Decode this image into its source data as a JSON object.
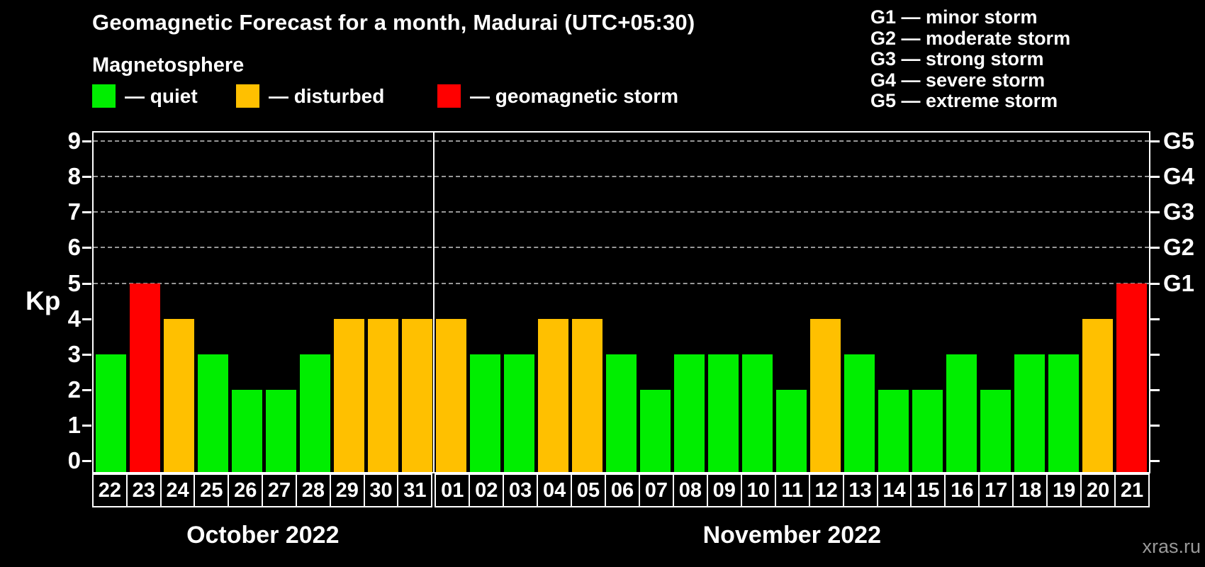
{
  "title": "Geomagnetic Forecast for a month, Madurai (UTC+05:30)",
  "subtitle": "Magnetosphere",
  "legend": {
    "items": [
      {
        "key": "quiet",
        "label": "— quiet",
        "color": "#00ee00"
      },
      {
        "key": "disturbed",
        "label": "— disturbed",
        "color": "#ffc000"
      },
      {
        "key": "storm",
        "label": "— geomagnetic storm",
        "color": "#ff0000"
      }
    ]
  },
  "g_legend": [
    "G1 — minor storm",
    "G2 — moderate storm",
    "G3 — strong storm",
    "G4 — severe storm",
    "G5 — extreme storm"
  ],
  "watermark": "xras.ru",
  "colors": {
    "background": "#000000",
    "axis": "#ffffff",
    "gridline": "#b3b3b3",
    "quiet": "#00ee00",
    "disturbed": "#ffc000",
    "storm": "#ff0000",
    "watermark": "#999999"
  },
  "chart_data": {
    "type": "bar",
    "title": "Geomagnetic Forecast for a month, Madurai (UTC+05:30)",
    "ylabel": "Kp",
    "ylim": [
      0,
      9
    ],
    "yticks": [
      0,
      1,
      2,
      3,
      4,
      5,
      6,
      7,
      8,
      9
    ],
    "gridlines_at": [
      5,
      6,
      7,
      8,
      9
    ],
    "grid": "dashed horizontal at G-storm levels only",
    "legend_position": "top",
    "right_axis": [
      {
        "value": 5,
        "label": "G1"
      },
      {
        "value": 6,
        "label": "G2"
      },
      {
        "value": 7,
        "label": "G3"
      },
      {
        "value": 8,
        "label": "G4"
      },
      {
        "value": 9,
        "label": "G5"
      }
    ],
    "status_colors": {
      "quiet": "#00ee00",
      "disturbed": "#ffc000",
      "storm": "#ff0000"
    },
    "months": [
      {
        "label": "October 2022",
        "bars": [
          {
            "day": "22",
            "kp": 3,
            "status": "quiet"
          },
          {
            "day": "23",
            "kp": 5,
            "status": "storm"
          },
          {
            "day": "24",
            "kp": 4,
            "status": "disturbed"
          },
          {
            "day": "25",
            "kp": 3,
            "status": "quiet"
          },
          {
            "day": "26",
            "kp": 2,
            "status": "quiet"
          },
          {
            "day": "27",
            "kp": 2,
            "status": "quiet"
          },
          {
            "day": "28",
            "kp": 3,
            "status": "quiet"
          },
          {
            "day": "29",
            "kp": 4,
            "status": "disturbed"
          },
          {
            "day": "30",
            "kp": 4,
            "status": "disturbed"
          },
          {
            "day": "31",
            "kp": 4,
            "status": "disturbed"
          }
        ]
      },
      {
        "label": "November 2022",
        "bars": [
          {
            "day": "01",
            "kp": 4,
            "status": "disturbed"
          },
          {
            "day": "02",
            "kp": 3,
            "status": "quiet"
          },
          {
            "day": "03",
            "kp": 3,
            "status": "quiet"
          },
          {
            "day": "04",
            "kp": 4,
            "status": "disturbed"
          },
          {
            "day": "05",
            "kp": 4,
            "status": "disturbed"
          },
          {
            "day": "06",
            "kp": 3,
            "status": "quiet"
          },
          {
            "day": "07",
            "kp": 2,
            "status": "quiet"
          },
          {
            "day": "08",
            "kp": 3,
            "status": "quiet"
          },
          {
            "day": "09",
            "kp": 3,
            "status": "quiet"
          },
          {
            "day": "10",
            "kp": 3,
            "status": "quiet"
          },
          {
            "day": "11",
            "kp": 2,
            "status": "quiet"
          },
          {
            "day": "12",
            "kp": 4,
            "status": "disturbed"
          },
          {
            "day": "13",
            "kp": 3,
            "status": "quiet"
          },
          {
            "day": "14",
            "kp": 2,
            "status": "quiet"
          },
          {
            "day": "15",
            "kp": 2,
            "status": "quiet"
          },
          {
            "day": "16",
            "kp": 3,
            "status": "quiet"
          },
          {
            "day": "17",
            "kp": 2,
            "status": "quiet"
          },
          {
            "day": "18",
            "kp": 3,
            "status": "quiet"
          },
          {
            "day": "19",
            "kp": 3,
            "status": "quiet"
          },
          {
            "day": "20",
            "kp": 4,
            "status": "disturbed"
          },
          {
            "day": "21",
            "kp": 5,
            "status": "storm"
          }
        ]
      }
    ]
  }
}
